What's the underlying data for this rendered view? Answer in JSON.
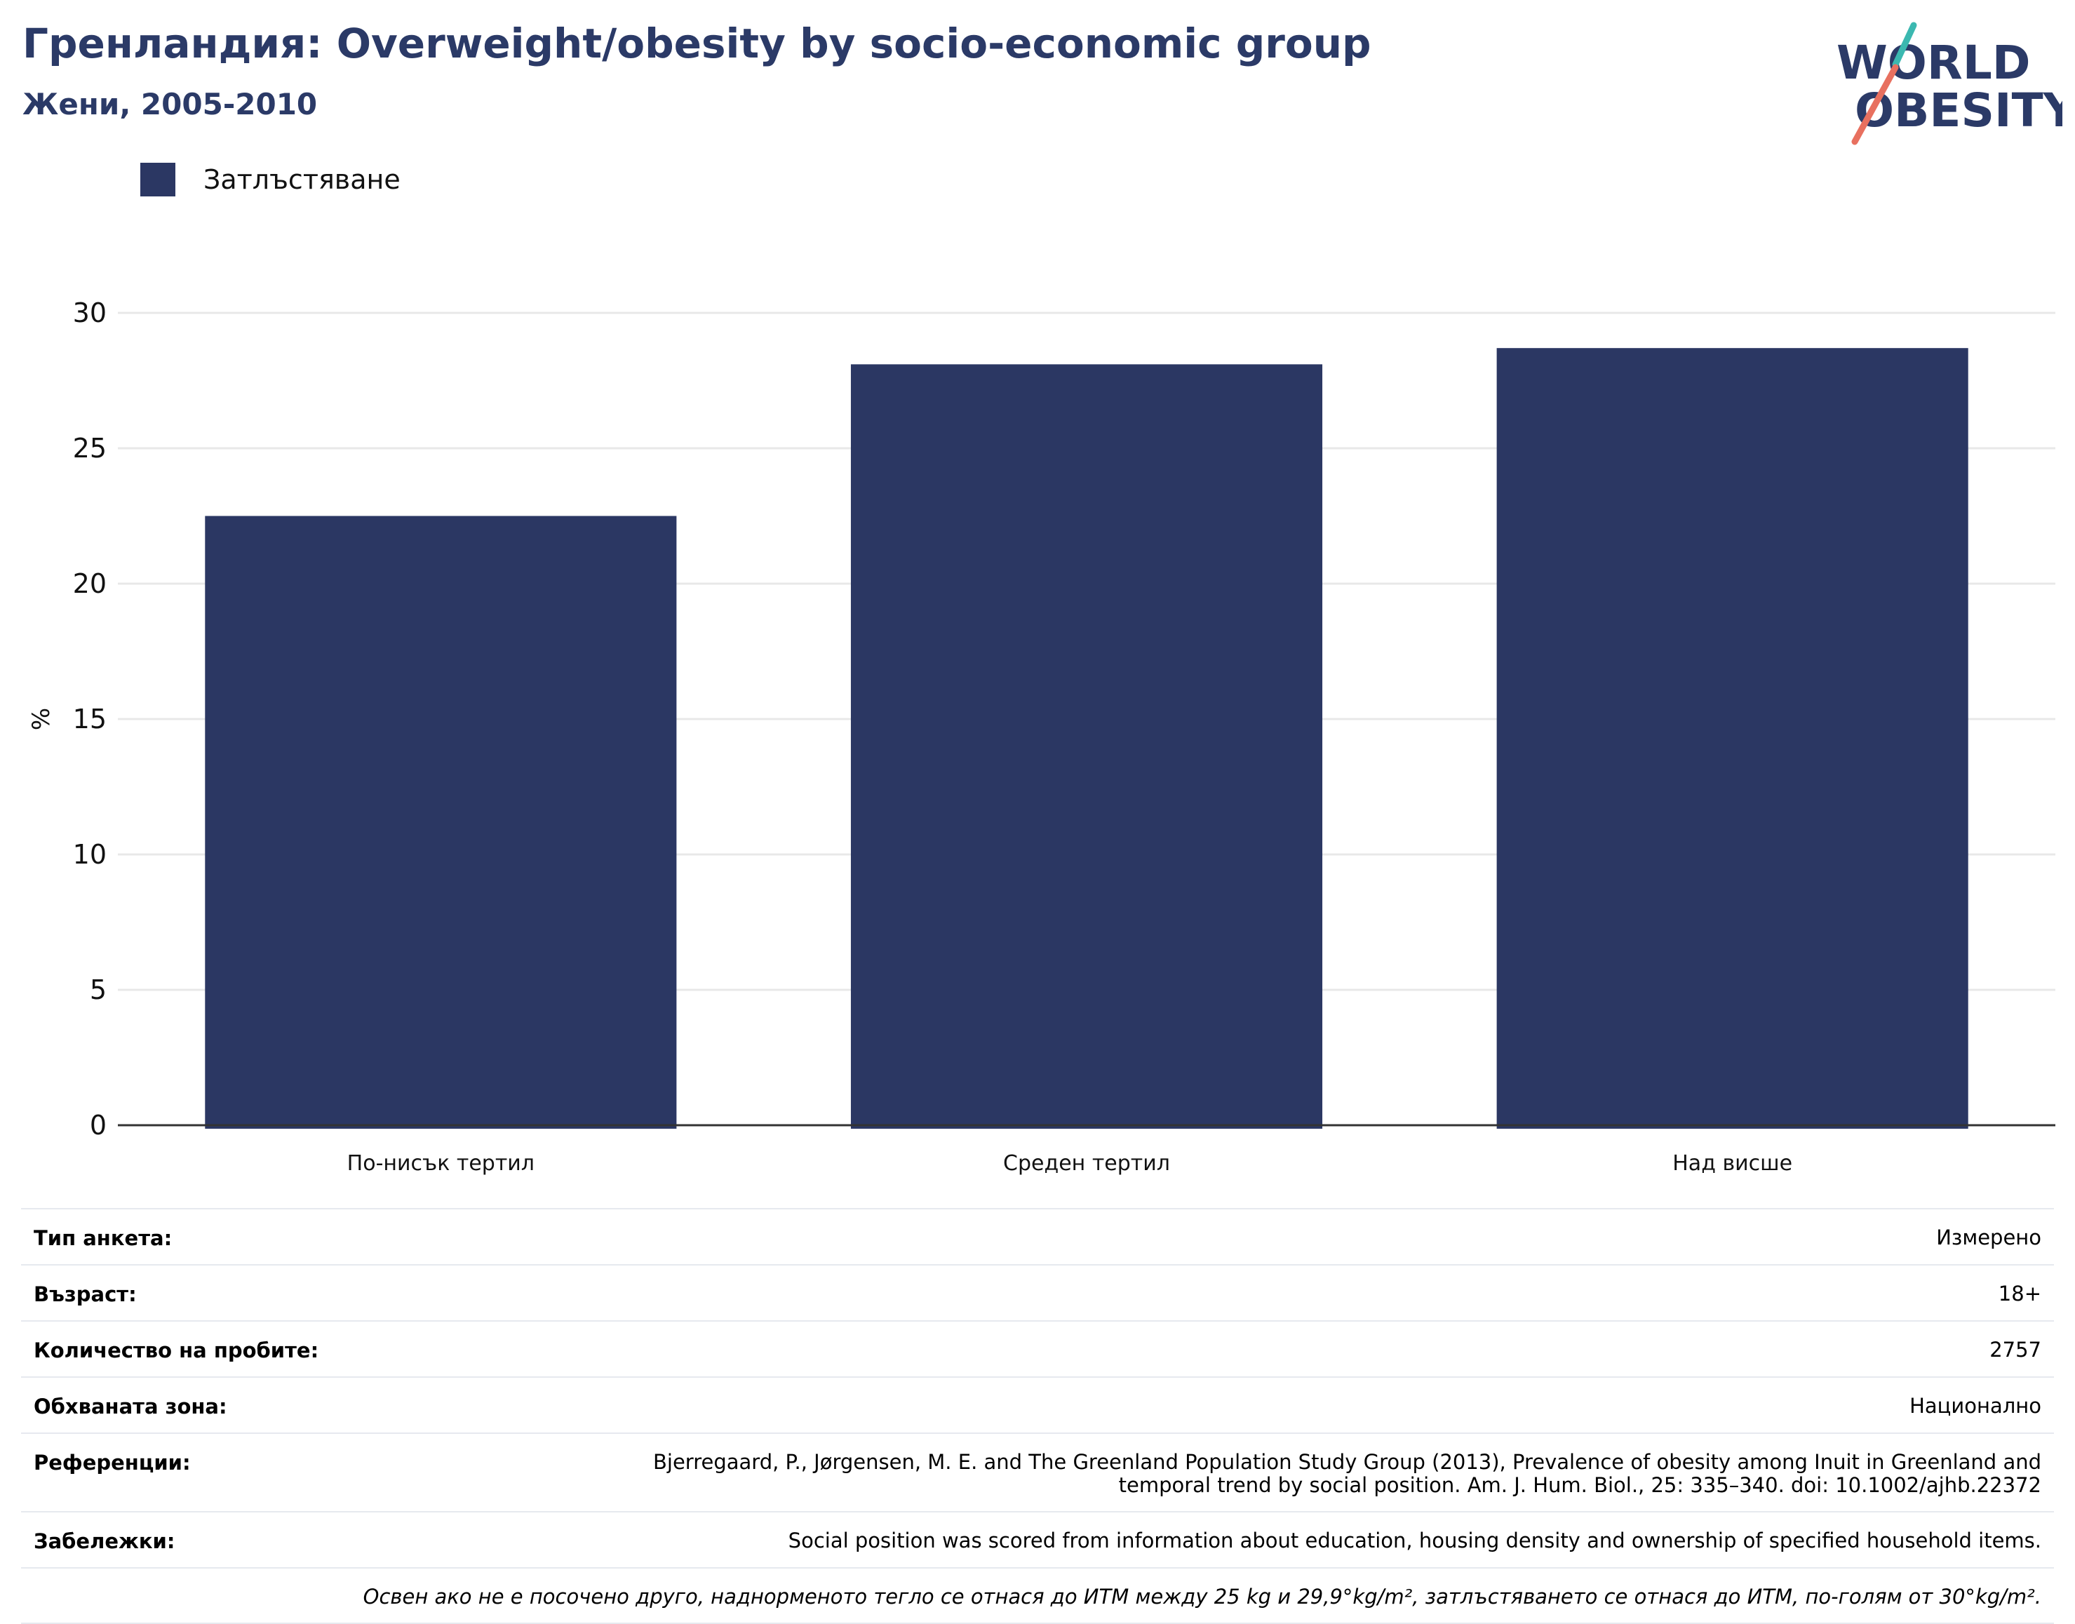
{
  "header": {
    "title": "Гренландия: Overweight/obesity by socio-economic group",
    "subtitle": "Жени, 2005-2010"
  },
  "logo": {
    "line1": "WORLD",
    "line2": "OBESITY",
    "colors": {
      "text": "#2b3a67",
      "teal": "#3bb8b0",
      "coral": "#e8705f"
    }
  },
  "colors": {
    "bar": "#2b3763",
    "grid": "#e8e8e8",
    "axis": "#333333"
  },
  "chart_data": {
    "type": "bar",
    "categories": [
      "По-нисък тертил",
      "Среден тертил",
      "Над висше"
    ],
    "series": [
      {
        "name": "Затлъстяване",
        "values": [
          22.5,
          28.1,
          28.7
        ]
      }
    ],
    "ylabel": "%",
    "ylim": [
      0,
      30
    ],
    "yticks": [
      0,
      5,
      10,
      15,
      20,
      25,
      30
    ],
    "grid": true,
    "legend": "top-left"
  },
  "info": {
    "rows": [
      {
        "label": "Тип анкета:",
        "value": "Измерено"
      },
      {
        "label": "Възраст:",
        "value": "18+"
      },
      {
        "label": "Количество на пробите:",
        "value": "2757"
      },
      {
        "label": "Обхваната зона:",
        "value": "Национално"
      },
      {
        "label": "Референции:",
        "value": "Bjerregaard, P., Jørgensen, M. E. and The Greenland Population Study Group (2013), Prevalence of obesity among Inuit in Greenland and temporal trend by social position. Am. J. Hum. Biol., 25: 335–340. doi: 10.1002/ajhb.22372"
      },
      {
        "label": "Забележки:",
        "value": "Social position was scored from information about education, housing density and ownership of specified household items."
      }
    ],
    "footnote": "Освен ако не е посочено друго, наднорменото тегло се отнася до ИТМ между 25 kg и 29,9°kg/m², затлъстяването се отнася до ИТМ, по-голям от 30°kg/m²."
  }
}
